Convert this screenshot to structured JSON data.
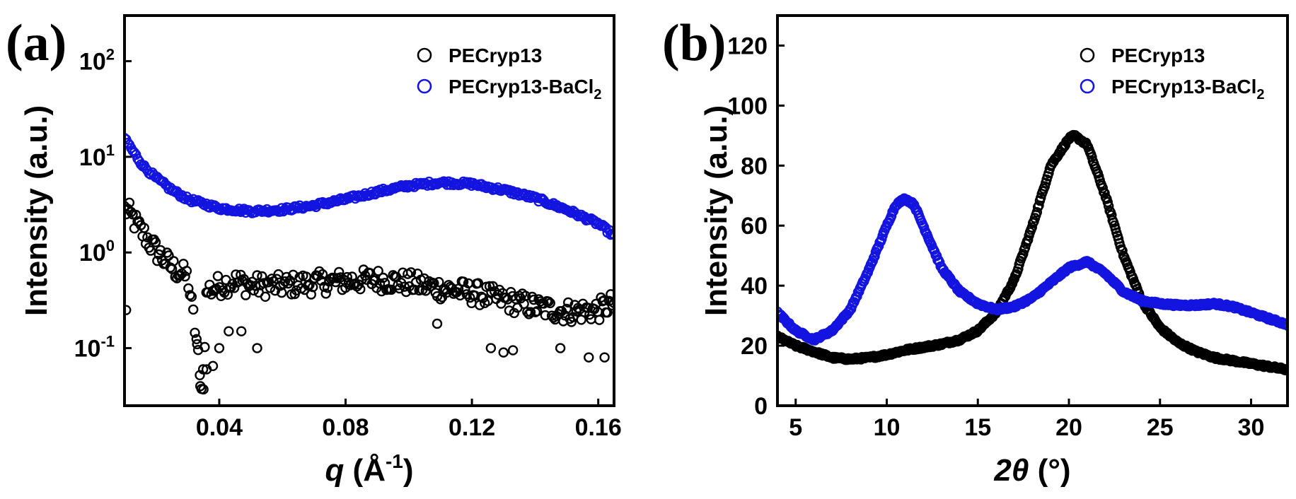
{
  "chart_data": [
    {
      "panel_label": "(a)",
      "type": "scatter",
      "xlabel": "q (Å⁻¹)",
      "xlabel_main": "q",
      "xlabel_unit": " (Å",
      "xlabel_sup": "-1",
      "xlabel_close": ")",
      "ylabel": "Intensity (a.u.)",
      "yscale": "log",
      "xlim": [
        0.01,
        0.165
      ],
      "ylim": [
        0.025,
        300
      ],
      "xticks": [
        0.04,
        0.08,
        0.12,
        0.16
      ],
      "xtick_labels": [
        "0.04",
        "0.08",
        "0.12",
        "0.16"
      ],
      "yticks": [
        {
          "value": 0.1,
          "base": "10",
          "exp": "-1"
        },
        {
          "value": 1,
          "base": "10",
          "exp": "0"
        },
        {
          "value": 10,
          "base": "10",
          "exp": "1"
        },
        {
          "value": 100,
          "base": "10",
          "exp": "2"
        }
      ],
      "legend_position": "top-right",
      "series": [
        {
          "name": "PECryp13",
          "color": "#000000",
          "marker": "open-circle",
          "x": [
            0.0105,
            0.0125,
            0.0145,
            0.0165,
            0.0185,
            0.0205,
            0.025,
            0.03,
            0.033,
            0.034,
            0.035,
            0.036,
            0.04,
            0.045,
            0.05,
            0.06,
            0.07,
            0.08,
            0.09,
            0.1,
            0.11,
            0.12,
            0.13,
            0.14,
            0.15,
            0.16,
            0.165
          ],
          "y": [
            2.8,
            2.3,
            1.8,
            1.5,
            1.2,
            1.0,
            0.7,
            0.55,
            0.11,
            0.04,
            0.06,
            0.4,
            0.45,
            0.5,
            0.45,
            0.45,
            0.48,
            0.5,
            0.52,
            0.48,
            0.42,
            0.38,
            0.32,
            0.27,
            0.24,
            0.25,
            0.3
          ]
        },
        {
          "name": "PECryp13-BaCl",
          "name_sub": "2",
          "color": "#1414e0",
          "marker": "open-circle",
          "x": [
            0.0105,
            0.013,
            0.016,
            0.02,
            0.025,
            0.03,
            0.04,
            0.05,
            0.06,
            0.07,
            0.08,
            0.09,
            0.1,
            0.11,
            0.12,
            0.13,
            0.14,
            0.15,
            0.16,
            0.165
          ],
          "y": [
            15,
            11,
            8,
            6,
            4.5,
            3.6,
            2.9,
            2.7,
            2.8,
            3.1,
            3.6,
            4.3,
            5.0,
            5.4,
            5.2,
            4.5,
            3.7,
            2.8,
            2.0,
            1.5
          ]
        }
      ]
    },
    {
      "panel_label": "(b)",
      "type": "scatter",
      "xlabel": "2θ (°)",
      "xlabel_main": "2θ",
      "xlabel_unit": " (°)",
      "ylabel": "Intensity (a.u.)",
      "xlim": [
        4,
        32
      ],
      "ylim": [
        0,
        130
      ],
      "xticks": [
        5,
        10,
        15,
        20,
        25,
        30
      ],
      "xtick_labels": [
        "5",
        "10",
        "15",
        "20",
        "25",
        "30"
      ],
      "yticks": [
        0,
        20,
        40,
        60,
        80,
        100,
        120
      ],
      "ytick_labels": [
        "0",
        "20",
        "40",
        "60",
        "80",
        "100",
        "120"
      ],
      "legend_position": "top-right",
      "series": [
        {
          "name": "PECryp13",
          "color": "#000000",
          "marker": "open-circle",
          "x": [
            4,
            5,
            6,
            7,
            8,
            9,
            10,
            11,
            12,
            13,
            14,
            15,
            16,
            17,
            18,
            19,
            20,
            20.3,
            21,
            22,
            23,
            24,
            25,
            26,
            27,
            28,
            29,
            30,
            31,
            32
          ],
          "y": [
            23,
            20,
            18,
            16,
            15.5,
            16,
            17,
            18.5,
            19.5,
            20.5,
            22,
            25,
            31,
            42,
            60,
            80,
            89,
            90,
            87,
            70,
            50,
            35,
            26,
            21,
            18,
            16,
            15,
            14,
            13,
            12
          ]
        },
        {
          "name": "PECryp13-BaCl",
          "name_sub": "2",
          "color": "#1414e0",
          "marker": "open-circle",
          "x": [
            4,
            5,
            6,
            7,
            8,
            9,
            10,
            10.5,
            11,
            11.5,
            12,
            13,
            14,
            15,
            16,
            17,
            18,
            19,
            20,
            21,
            22,
            23,
            24,
            25,
            26,
            27,
            28,
            29,
            30,
            31,
            32
          ],
          "y": [
            31,
            25,
            22,
            25,
            32,
            45,
            60,
            67,
            69,
            67,
            60,
            46,
            38,
            34,
            32,
            33,
            36,
            41,
            46,
            48,
            44,
            38,
            35,
            34,
            33.5,
            33.5,
            34,
            33,
            31,
            29,
            27
          ]
        }
      ]
    }
  ]
}
